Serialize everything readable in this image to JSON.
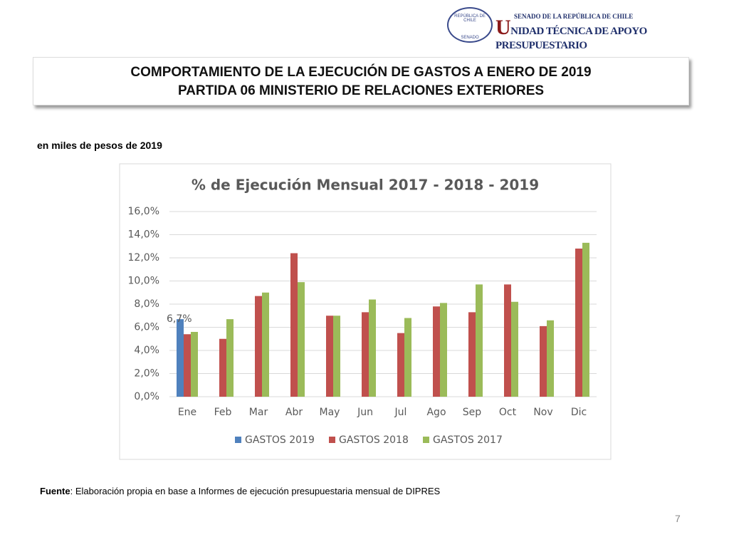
{
  "header": {
    "seal_top": "REPÚBLICA DE CHILE",
    "seal_bottom": "SENADO",
    "org_small": "SENADO DE LA REPÚBLICA DE CHILE",
    "org_large": "UNIDAD TÉCNICA DE APOYO PRESUPUESTARIO"
  },
  "title": {
    "line1": "COMPORTAMIENTO DE LA EJECUCIÓN DE GASTOS A ENERO DE 2019",
    "line2": "PARTIDA 06 MINISTERIO DE RELACIONES EXTERIORES"
  },
  "units_note": "en miles de pesos de 2019",
  "chart_data": {
    "type": "bar",
    "title": "% de Ejecución Mensual 2017 - 2018 - 2019",
    "categories": [
      "Ene",
      "Feb",
      "Mar",
      "Abr",
      "May",
      "Jun",
      "Jul",
      "Ago",
      "Sep",
      "Oct",
      "Nov",
      "Dic"
    ],
    "series": [
      {
        "name": "GASTOS 2019",
        "color": "#4f81bd",
        "values": [
          6.7,
          null,
          null,
          null,
          null,
          null,
          null,
          null,
          null,
          null,
          null,
          null
        ],
        "value_labels": [
          "6,7%",
          null,
          null,
          null,
          null,
          null,
          null,
          null,
          null,
          null,
          null,
          null
        ]
      },
      {
        "name": "GASTOS 2018",
        "color": "#c0504d",
        "values": [
          5.4,
          5.0,
          8.7,
          12.4,
          7.0,
          7.3,
          5.5,
          7.8,
          7.3,
          9.7,
          6.1,
          12.8
        ]
      },
      {
        "name": "GASTOS 2017",
        "color": "#9bbb59",
        "values": [
          5.6,
          6.7,
          9.0,
          9.9,
          7.0,
          8.4,
          6.8,
          8.1,
          9.7,
          8.2,
          6.6,
          13.3
        ]
      }
    ],
    "ylim": [
      0,
      16
    ],
    "yticks": [
      {
        "value": 0,
        "label": "0,0%"
      },
      {
        "value": 2,
        "label": "2,0%"
      },
      {
        "value": 4,
        "label": "4,0%"
      },
      {
        "value": 6,
        "label": "6,0%"
      },
      {
        "value": 8,
        "label": "8,0%"
      },
      {
        "value": 10,
        "label": "10,0%"
      },
      {
        "value": 12,
        "label": "12,0%"
      },
      {
        "value": 14,
        "label": "14,0%"
      },
      {
        "value": 16,
        "label": "16,0%"
      }
    ],
    "grid": true,
    "legend": "bottom"
  },
  "source": {
    "label": "Fuente",
    "text": ": Elaboración propia en base  a Informes de ejecución presupuestaria mensual de DIPRES"
  },
  "page_number": "7"
}
